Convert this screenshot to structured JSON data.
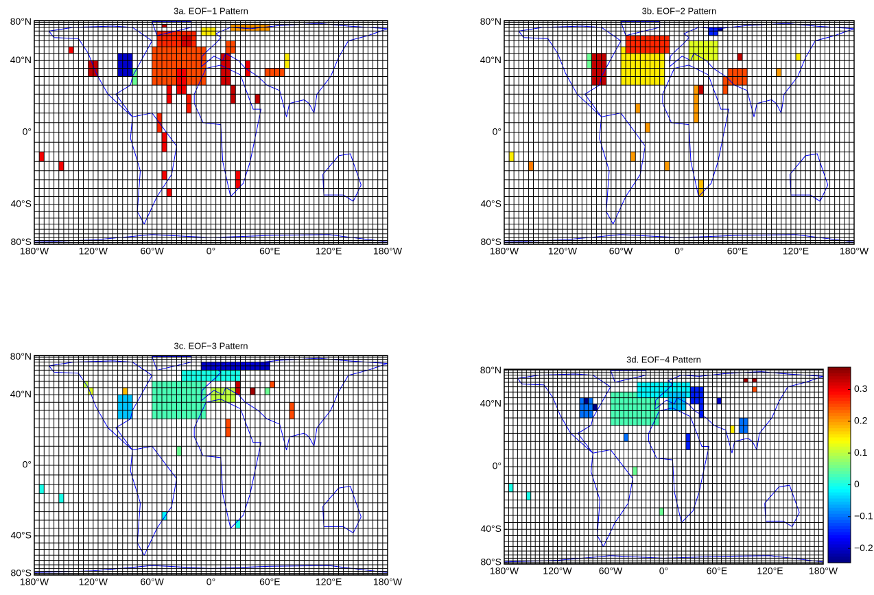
{
  "chart_data": [
    {
      "type": "map",
      "title": "3a. EOF−1 Pattern",
      "xlim": [
        -180,
        180
      ],
      "ylim": [
        -90,
        90
      ],
      "xticks": [
        {
          "value": -180,
          "label": "180°W"
        },
        {
          "value": -120,
          "label": "120°W"
        },
        {
          "value": -60,
          "label": "60°W"
        },
        {
          "value": 0,
          "label": "0°"
        },
        {
          "value": 60,
          "label": "60°E"
        },
        {
          "value": 120,
          "label": "120°E"
        },
        {
          "value": 180,
          "label": "180°W"
        }
      ],
      "yticks": [
        {
          "value": 80,
          "label": "80°N"
        },
        {
          "value": 40,
          "label": "40°N"
        },
        {
          "value": 0,
          "label": "0°"
        },
        {
          "value": -40,
          "label": "40°S"
        },
        {
          "value": -80,
          "label": "80°S"
        }
      ],
      "cells": [
        {
          "lon": [
            -125,
            -115
          ],
          "lat": [
            30,
            40
          ],
          "value": 0.33
        },
        {
          "lon": [
            -95,
            -80
          ],
          "lat": [
            30,
            45
          ],
          "value": -0.2
        },
        {
          "lon": [
            -80,
            -75
          ],
          "lat": [
            25,
            35
          ],
          "value": 0.05
        },
        {
          "lon": [
            -60,
            -5
          ],
          "lat": [
            25,
            50
          ],
          "value": 0.25
        },
        {
          "lon": [
            -55,
            -15
          ],
          "lat": [
            50,
            65
          ],
          "value": 0.27
        },
        {
          "lon": [
            -30,
            -20
          ],
          "lat": [
            50,
            60
          ],
          "value": 0.32
        },
        {
          "lon": [
            -45,
            -40
          ],
          "lat": [
            15,
            25
          ],
          "value": 0.3
        },
        {
          "lon": [
            -35,
            -25
          ],
          "lat": [
            20,
            35
          ],
          "value": 0.3
        },
        {
          "lon": [
            -25,
            -20
          ],
          "lat": [
            10,
            20
          ],
          "value": 0.28
        },
        {
          "lon": [
            -55,
            -50
          ],
          "lat": [
            0,
            10
          ],
          "value": 0.27
        },
        {
          "lon": [
            -50,
            -45
          ],
          "lat": [
            -10,
            0
          ],
          "value": 0.3
        },
        {
          "lon": [
            -50,
            -45
          ],
          "lat": [
            -25,
            -20
          ],
          "value": 0.3
        },
        {
          "lon": [
            -45,
            -40
          ],
          "lat": [
            -35,
            -30
          ],
          "value": 0.3
        },
        {
          "lon": [
            10,
            20
          ],
          "lat": [
            25,
            45
          ],
          "value": 0.32
        },
        {
          "lon": [
            20,
            25
          ],
          "lat": [
            15,
            25
          ],
          "value": 0.33
        },
        {
          "lon": [
            15,
            25
          ],
          "lat": [
            45,
            55
          ],
          "value": 0.25
        },
        {
          "lon": [
            35,
            40
          ],
          "lat": [
            30,
            40
          ],
          "value": 0.3
        },
        {
          "lon": [
            55,
            75
          ],
          "lat": [
            30,
            35
          ],
          "value": 0.25
        },
        {
          "lon": [
            75,
            80
          ],
          "lat": [
            35,
            45
          ],
          "value": 0.15
        },
        {
          "lon": [
            45,
            50
          ],
          "lat": [
            15,
            20
          ],
          "value": 0.33
        },
        {
          "lon": [
            25,
            30
          ],
          "lat": [
            -30,
            -20
          ],
          "value": 0.3
        },
        {
          "lon": [
            -175,
            -170
          ],
          "lat": [
            -15,
            -10
          ],
          "value": 0.3
        },
        {
          "lon": [
            -155,
            -150
          ],
          "lat": [
            -20,
            -15
          ],
          "value": 0.3
        },
        {
          "lon": [
            -145,
            -140
          ],
          "lat": [
            45,
            50
          ],
          "value": 0.3
        },
        {
          "lon": [
            -50,
            -45
          ],
          "lat": [
            70,
            75
          ],
          "value": 0.33
        },
        {
          "lon": [
            20,
            60
          ],
          "lat": [
            65,
            75
          ],
          "value": 0.2
        },
        {
          "lon": [
            -10,
            5
          ],
          "lat": [
            60,
            70
          ],
          "value": 0.15
        }
      ]
    },
    {
      "type": "map",
      "title": "3b. EOF−2 Pattern",
      "xlim": [
        -180,
        180
      ],
      "ylim": [
        -90,
        90
      ],
      "xticks": [
        {
          "value": -180,
          "label": "180°W"
        },
        {
          "value": -120,
          "label": "120°W"
        },
        {
          "value": -60,
          "label": "60°W"
        },
        {
          "value": 0,
          "label": "0°"
        },
        {
          "value": 60,
          "label": "60°E"
        },
        {
          "value": 120,
          "label": "120°E"
        },
        {
          "value": 180,
          "label": "180°W"
        }
      ],
      "yticks": [
        {
          "value": 80,
          "label": "80°N"
        },
        {
          "value": 40,
          "label": "40°N"
        },
        {
          "value": 0,
          "label": "0°"
        },
        {
          "value": -40,
          "label": "40°S"
        },
        {
          "value": -80,
          "label": "80°S"
        }
      ],
      "cells": [
        {
          "lon": [
            -90,
            -75
          ],
          "lat": [
            25,
            45
          ],
          "value": 0.33
        },
        {
          "lon": [
            -60,
            -15
          ],
          "lat": [
            25,
            50
          ],
          "value": 0.15
        },
        {
          "lon": [
            -55,
            -10
          ],
          "lat": [
            45,
            60
          ],
          "value": 0.27
        },
        {
          "lon": [
            30,
            40
          ],
          "lat": [
            60,
            70
          ],
          "value": -0.15
        },
        {
          "lon": [
            40,
            45
          ],
          "lat": [
            65,
            70
          ],
          "value": -0.25
        },
        {
          "lon": [
            10,
            40
          ],
          "lat": [
            40,
            55
          ],
          "value": 0.12
        },
        {
          "lon": [
            -95,
            -90
          ],
          "lat": [
            35,
            45
          ],
          "value": 0.05
        },
        {
          "lon": [
            50,
            70
          ],
          "lat": [
            25,
            35
          ],
          "value": 0.25
        },
        {
          "lon": [
            60,
            65
          ],
          "lat": [
            40,
            45
          ],
          "value": 0.33
        },
        {
          "lon": [
            45,
            50
          ],
          "lat": [
            20,
            30
          ],
          "value": 0.25
        },
        {
          "lon": [
            20,
            25
          ],
          "lat": [
            20,
            25
          ],
          "value": 0.33
        },
        {
          "lon": [
            15,
            20
          ],
          "lat": [
            5,
            25
          ],
          "value": 0.2
        },
        {
          "lon": [
            -45,
            -40
          ],
          "lat": [
            10,
            15
          ],
          "value": 0.2
        },
        {
          "lon": [
            -35,
            -30
          ],
          "lat": [
            0,
            5
          ],
          "value": 0.2
        },
        {
          "lon": [
            20,
            25
          ],
          "lat": [
            -35,
            -25
          ],
          "value": 0.18
        },
        {
          "lon": [
            -50,
            -45
          ],
          "lat": [
            -15,
            -10
          ],
          "value": 0.2
        },
        {
          "lon": [
            -175,
            -170
          ],
          "lat": [
            -15,
            -10
          ],
          "value": 0.15
        },
        {
          "lon": [
            -155,
            -150
          ],
          "lat": [
            -20,
            -15
          ],
          "value": 0.22
        },
        {
          "lon": [
            100,
            105
          ],
          "lat": [
            30,
            35
          ],
          "value": 0.2
        },
        {
          "lon": [
            120,
            125
          ],
          "lat": [
            40,
            45
          ],
          "value": 0.15
        },
        {
          "lon": [
            -15,
            -10
          ],
          "lat": [
            -20,
            -15
          ],
          "value": 0.2
        }
      ]
    },
    {
      "type": "map",
      "title": "3c. EOF−3 Pattern",
      "xlim": [
        -180,
        180
      ],
      "ylim": [
        -90,
        90
      ],
      "xticks": [
        {
          "value": -180,
          "label": "180°W"
        },
        {
          "value": -120,
          "label": "120°W"
        },
        {
          "value": -60,
          "label": "60°W"
        },
        {
          "value": 0,
          "label": "0°"
        },
        {
          "value": 60,
          "label": "60°E"
        },
        {
          "value": 120,
          "label": "120°E"
        },
        {
          "value": 180,
          "label": "180°W"
        }
      ],
      "yticks": [
        {
          "value": 80,
          "label": "80°N"
        },
        {
          "value": 40,
          "label": "40°N"
        },
        {
          "value": 0,
          "label": "0°"
        },
        {
          "value": -40,
          "label": "40°S"
        },
        {
          "value": -80,
          "label": "80°S"
        }
      ],
      "cells": [
        {
          "lon": [
            -60,
            -5
          ],
          "lat": [
            25,
            50
          ],
          "value": 0.03
        },
        {
          "lon": [
            -30,
            30
          ],
          "lat": [
            50,
            60
          ],
          "value": 0.0
        },
        {
          "lon": [
            -10,
            60
          ],
          "lat": [
            60,
            70
          ],
          "value": -0.2
        },
        {
          "lon": [
            -95,
            -80
          ],
          "lat": [
            25,
            40
          ],
          "value": -0.05
        },
        {
          "lon": [
            -90,
            -85
          ],
          "lat": [
            40,
            45
          ],
          "value": 0.18
        },
        {
          "lon": [
            -125,
            -120
          ],
          "lat": [
            40,
            45
          ],
          "value": 0.12
        },
        {
          "lon": [
            -130,
            -125
          ],
          "lat": [
            45,
            50
          ],
          "value": 0.1
        },
        {
          "lon": [
            0,
            25
          ],
          "lat": [
            35,
            45
          ],
          "value": 0.1
        },
        {
          "lon": [
            25,
            30
          ],
          "lat": [
            40,
            50
          ],
          "value": 0.33
        },
        {
          "lon": [
            40,
            45
          ],
          "lat": [
            40,
            45
          ],
          "value": 0.35
        },
        {
          "lon": [
            60,
            65
          ],
          "lat": [
            45,
            50
          ],
          "value": 0.25
        },
        {
          "lon": [
            55,
            60
          ],
          "lat": [
            40,
            45
          ],
          "value": 0.05
        },
        {
          "lon": [
            80,
            85
          ],
          "lat": [
            25,
            35
          ],
          "value": 0.25
        },
        {
          "lon": [
            15,
            20
          ],
          "lat": [
            15,
            25
          ],
          "value": 0.25
        },
        {
          "lon": [
            -35,
            -30
          ],
          "lat": [
            5,
            10
          ],
          "value": 0.05
        },
        {
          "lon": [
            -50,
            -45
          ],
          "lat": [
            -30,
            -25
          ],
          "value": -0.02
        },
        {
          "lon": [
            25,
            30
          ],
          "lat": [
            -35,
            -30
          ],
          "value": 0.0
        },
        {
          "lon": [
            -175,
            -170
          ],
          "lat": [
            -15,
            -10
          ],
          "value": 0.0
        },
        {
          "lon": [
            -155,
            -150
          ],
          "lat": [
            -20,
            -15
          ],
          "value": 0.0
        }
      ]
    },
    {
      "type": "map",
      "title": "3d. EOF−4 Pattern",
      "xlim": [
        -180,
        180
      ],
      "ylim": [
        -90,
        90
      ],
      "xticks": [
        {
          "value": -180,
          "label": "180°W"
        },
        {
          "value": -120,
          "label": "120°W"
        },
        {
          "value": -60,
          "label": "60°W"
        },
        {
          "value": 0,
          "label": "0°"
        },
        {
          "value": 60,
          "label": "60°E"
        },
        {
          "value": 120,
          "label": "120°E"
        },
        {
          "value": 180,
          "label": "180°W"
        }
      ],
      "yticks": [
        {
          "value": 80,
          "label": "80°N"
        },
        {
          "value": 40,
          "label": "40°N"
        },
        {
          "value": 0,
          "label": "0°"
        },
        {
          "value": -40,
          "label": "40°S"
        },
        {
          "value": -80,
          "label": "80°S"
        }
      ],
      "cells": [
        {
          "lon": [
            -60,
            -5
          ],
          "lat": [
            25,
            50
          ],
          "value": 0.03
        },
        {
          "lon": [
            -30,
            30
          ],
          "lat": [
            45,
            60
          ],
          "value": -0.02
        },
        {
          "lon": [
            -95,
            -80
          ],
          "lat": [
            30,
            45
          ],
          "value": -0.1
        },
        {
          "lon": [
            -90,
            -85
          ],
          "lat": [
            40,
            45
          ],
          "value": -0.25
        },
        {
          "lon": [
            -80,
            -75
          ],
          "lat": [
            35,
            40
          ],
          "value": -0.25
        },
        {
          "lon": [
            5,
            25
          ],
          "lat": [
            35,
            50
          ],
          "value": -0.05
        },
        {
          "lon": [
            30,
            45
          ],
          "lat": [
            40,
            55
          ],
          "value": -0.15
        },
        {
          "lon": [
            40,
            45
          ],
          "lat": [
            30,
            40
          ],
          "value": -0.15
        },
        {
          "lon": [
            60,
            65
          ],
          "lat": [
            40,
            45
          ],
          "value": -0.2
        },
        {
          "lon": [
            90,
            95
          ],
          "lat": [
            60,
            65
          ],
          "value": 0.35
        },
        {
          "lon": [
            100,
            105
          ],
          "lat": [
            60,
            65
          ],
          "value": 0.35
        },
        {
          "lon": [
            100,
            105
          ],
          "lat": [
            50,
            55
          ],
          "value": 0.25
        },
        {
          "lon": [
            85,
            95
          ],
          "lat": [
            20,
            30
          ],
          "value": -0.1
        },
        {
          "lon": [
            25,
            30
          ],
          "lat": [
            10,
            20
          ],
          "value": -0.15
        },
        {
          "lon": [
            -45,
            -40
          ],
          "lat": [
            15,
            20
          ],
          "value": -0.1
        },
        {
          "lon": [
            -35,
            -30
          ],
          "lat": [
            -5,
            0
          ],
          "value": 0.05
        },
        {
          "lon": [
            -5,
            0
          ],
          "lat": [
            -30,
            -25
          ],
          "value": 0.05
        },
        {
          "lon": [
            -175,
            -170
          ],
          "lat": [
            -15,
            -10
          ],
          "value": 0.0
        },
        {
          "lon": [
            -155,
            -150
          ],
          "lat": [
            -20,
            -15
          ],
          "value": 0.0
        },
        {
          "lon": [
            75,
            80
          ],
          "lat": [
            20,
            25
          ],
          "value": 0.15
        }
      ],
      "clim": [
        -0.245,
        0.37
      ],
      "cticks": [
        0.3,
        0.2,
        0.1,
        0,
        {
          "value": -0.1,
          "label": "−0.1"
        },
        {
          "value": -0.2,
          "label": "−0.2"
        }
      ]
    }
  ]
}
